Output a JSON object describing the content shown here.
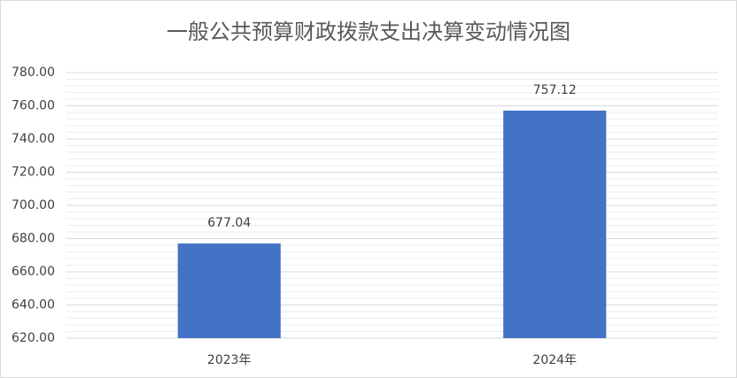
{
  "chart_data": {
    "type": "bar",
    "title": "一般公共预算财政拨款支出决算变动情况图",
    "categories": [
      "2023年",
      "2024年"
    ],
    "values": [
      677.04,
      757.12
    ],
    "color": "#4472c4",
    "ylim": [
      620,
      780
    ],
    "yticks": [
      {
        "value": 620,
        "label": "620.00"
      },
      {
        "value": 640,
        "label": "640.00"
      },
      {
        "value": 660,
        "label": "660.00"
      },
      {
        "value": 680,
        "label": "680.00"
      },
      {
        "value": 700,
        "label": "700.00"
      },
      {
        "value": 720,
        "label": "720.00"
      },
      {
        "value": 740,
        "label": "740.00"
      },
      {
        "value": 760,
        "label": "760.00"
      },
      {
        "value": 780,
        "label": "780.00"
      }
    ],
    "grid": true
  }
}
